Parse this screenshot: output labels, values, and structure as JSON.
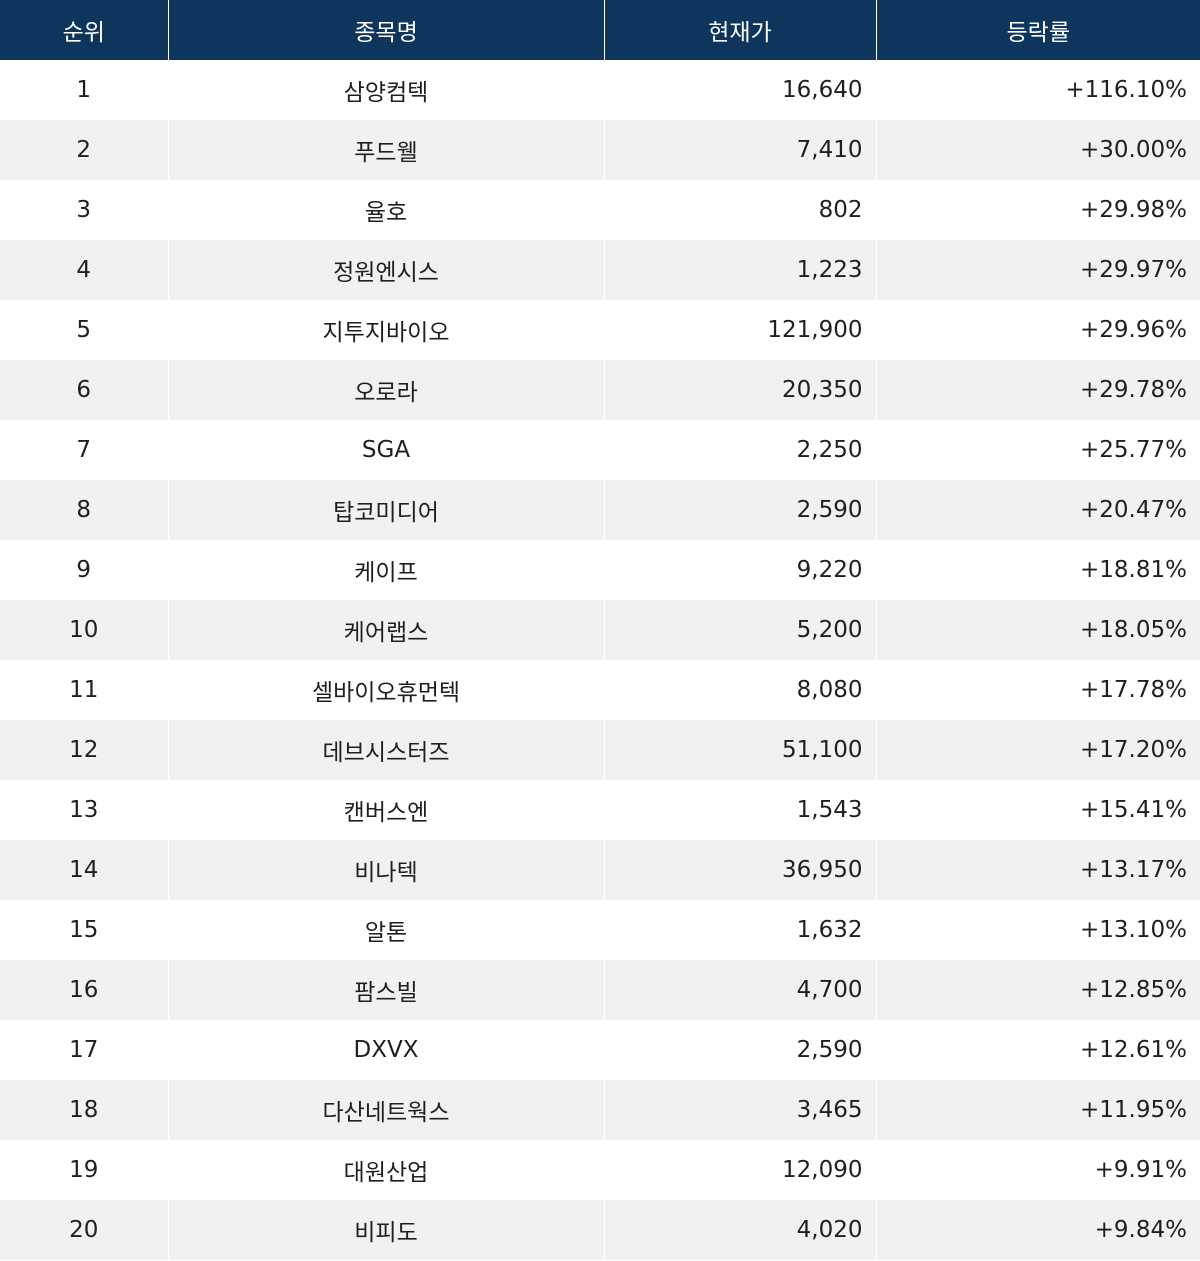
{
  "table": {
    "headers": [
      "순위",
      "종목명",
      "현재가",
      "등락률"
    ],
    "rows": [
      {
        "rank": "1",
        "name": "삼양컴텍",
        "price": "16,640",
        "change": "+116.10%"
      },
      {
        "rank": "2",
        "name": "푸드웰",
        "price": "7,410",
        "change": "+30.00%"
      },
      {
        "rank": "3",
        "name": "율호",
        "price": "802",
        "change": "+29.98%"
      },
      {
        "rank": "4",
        "name": "정원엔시스",
        "price": "1,223",
        "change": "+29.97%"
      },
      {
        "rank": "5",
        "name": "지투지바이오",
        "price": "121,900",
        "change": "+29.96%"
      },
      {
        "rank": "6",
        "name": "오로라",
        "price": "20,350",
        "change": "+29.78%"
      },
      {
        "rank": "7",
        "name": "SGA",
        "price": "2,250",
        "change": "+25.77%"
      },
      {
        "rank": "8",
        "name": "탑코미디어",
        "price": "2,590",
        "change": "+20.47%"
      },
      {
        "rank": "9",
        "name": "케이프",
        "price": "9,220",
        "change": "+18.81%"
      },
      {
        "rank": "10",
        "name": "케어랩스",
        "price": "5,200",
        "change": "+18.05%"
      },
      {
        "rank": "11",
        "name": "셀바이오휴먼텍",
        "price": "8,080",
        "change": "+17.78%"
      },
      {
        "rank": "12",
        "name": "데브시스터즈",
        "price": "51,100",
        "change": "+17.20%"
      },
      {
        "rank": "13",
        "name": "캔버스엔",
        "price": "1,543",
        "change": "+15.41%"
      },
      {
        "rank": "14",
        "name": "비나텍",
        "price": "36,950",
        "change": "+13.17%"
      },
      {
        "rank": "15",
        "name": "알톤",
        "price": "1,632",
        "change": "+13.10%"
      },
      {
        "rank": "16",
        "name": "팜스빌",
        "price": "4,700",
        "change": "+12.85%"
      },
      {
        "rank": "17",
        "name": "DXVX",
        "price": "2,590",
        "change": "+12.61%"
      },
      {
        "rank": "18",
        "name": "다산네트웍스",
        "price": "3,465",
        "change": "+11.95%"
      },
      {
        "rank": "19",
        "name": "대원산업",
        "price": "12,090",
        "change": "+9.91%"
      },
      {
        "rank": "20",
        "name": "비피도",
        "price": "4,020",
        "change": "+9.84%"
      }
    ]
  },
  "colors": {
    "header_bg": "#0e355c",
    "header_text": "#ffffff",
    "row_alt_bg": "#f1f1f1",
    "row_bg": "#ffffff",
    "text": "#1f1f1f"
  }
}
